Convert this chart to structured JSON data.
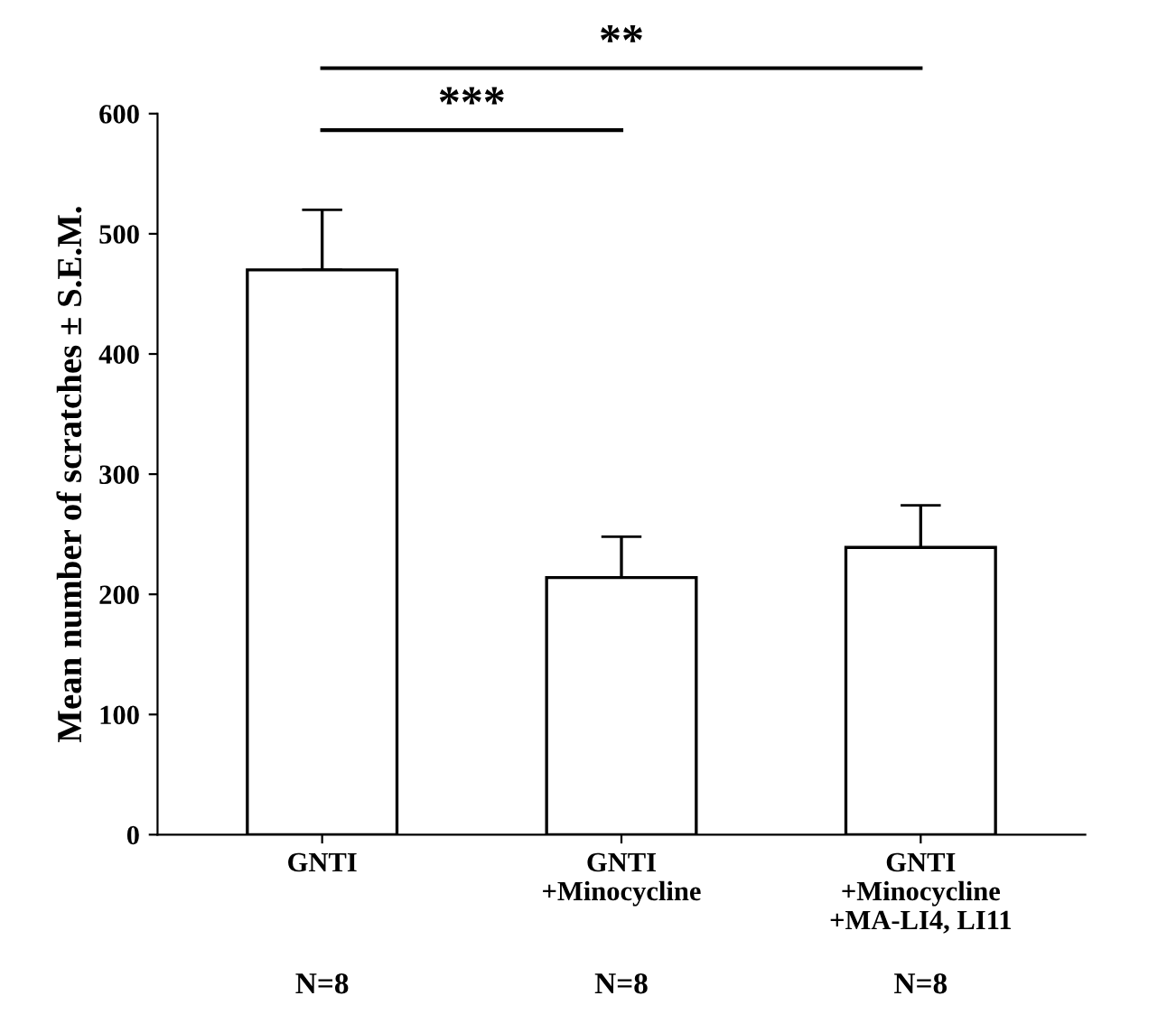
{
  "chart_data": {
    "type": "bar",
    "ylabel": "Mean number of scratches ± S.E.M.",
    "categories": [
      "GNTI",
      "GNTI\n+Minocycline",
      "GNTI\n+Minocycline\n+MA-LI4, LI11"
    ],
    "values": [
      470,
      214,
      239
    ],
    "color": "#ffffff",
    "errors": [
      [
        470,
        520
      ],
      [
        214,
        248
      ],
      [
        239,
        274
      ]
    ],
    "ylim": [
      0,
      600
    ],
    "yticks": [
      0,
      100,
      200,
      300,
      400,
      500,
      600
    ],
    "grid": false,
    "legend": false,
    "annotations": [
      "***",
      "**",
      "N=8",
      "N=8",
      "N=8"
    ]
  }
}
